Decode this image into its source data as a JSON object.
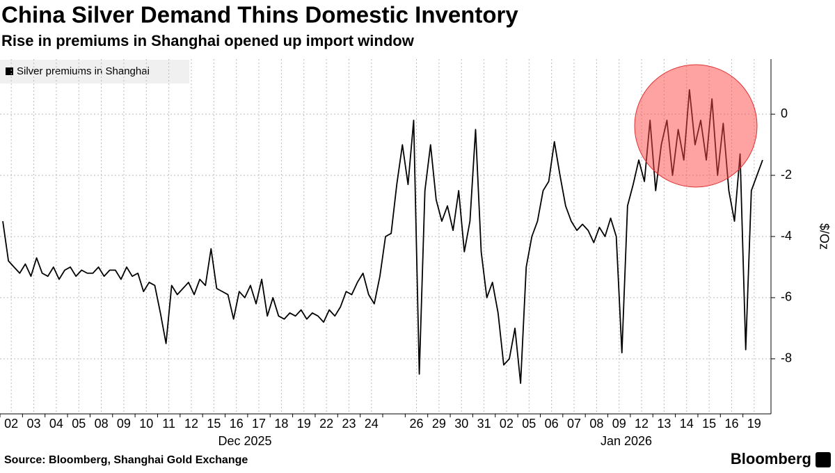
{
  "chart_data": {
    "type": "line",
    "title": "China Silver Demand Thins Domestic Inventory",
    "subtitle": "Rise in premiums in Shanghai opened up import window",
    "y_label": "$/Oz",
    "source": "Source: Bloomberg, Shanghai Gold Exchange",
    "brand": "Bloomberg",
    "month_labels": [
      "Dec 2025",
      "Jan 2026"
    ],
    "categories": [
      null,
      "02",
      null,
      null,
      null,
      "03",
      null,
      null,
      null,
      "04",
      null,
      null,
      null,
      "05",
      null,
      null,
      null,
      "08",
      null,
      null,
      null,
      "09",
      null,
      null,
      null,
      "10",
      null,
      null,
      null,
      "11",
      null,
      null,
      null,
      "12",
      null,
      null,
      null,
      "15",
      null,
      null,
      null,
      "16",
      null,
      null,
      null,
      "17",
      null,
      null,
      null,
      "18",
      null,
      null,
      null,
      "19",
      null,
      null,
      null,
      "22",
      null,
      null,
      null,
      "23",
      null,
      null,
      null,
      "24",
      null,
      null,
      null,
      null,
      null,
      null,
      null,
      "26",
      null,
      null,
      null,
      "29",
      null,
      null,
      null,
      "30",
      null,
      null,
      null,
      "31",
      null,
      null,
      null,
      "02",
      null,
      null,
      null,
      "05",
      null,
      null,
      null,
      "06",
      null,
      null,
      null,
      "07",
      null,
      null,
      null,
      "08",
      null,
      null,
      null,
      "09",
      null,
      null,
      null,
      "12",
      null,
      null,
      null,
      "13",
      null,
      null,
      null,
      "14",
      null,
      null,
      null,
      "15",
      null,
      null,
      null,
      "16",
      null,
      null,
      null,
      "19",
      null,
      null
    ],
    "series": [
      {
        "name": "Silver premiums in Shanghai",
        "color": "#000000",
        "values": [
          -3.5,
          -4.8,
          -5.0,
          -5.2,
          -4.9,
          -5.3,
          -4.7,
          -5.2,
          -5.3,
          -5.0,
          -5.4,
          -5.1,
          -5.0,
          -5.3,
          -5.1,
          -5.2,
          -5.2,
          -5.0,
          -5.3,
          -5.1,
          -5.1,
          -5.4,
          -5.0,
          -5.3,
          -5.2,
          -5.8,
          -5.5,
          -5.6,
          -6.5,
          -7.5,
          -5.6,
          -5.9,
          -5.7,
          -5.5,
          -5.9,
          -5.4,
          -5.6,
          -4.4,
          -5.7,
          -5.8,
          -5.9,
          -6.7,
          -5.8,
          -6.0,
          -5.6,
          -6.2,
          -5.4,
          -6.6,
          -6.0,
          -6.6,
          -6.7,
          -6.5,
          -6.6,
          -6.4,
          -6.7,
          -6.5,
          -6.6,
          -6.8,
          -6.4,
          -6.6,
          -6.3,
          -5.8,
          -5.9,
          -5.5,
          -5.2,
          -5.9,
          -6.2,
          -5.3,
          -4.0,
          -3.9,
          -2.3,
          -1.0,
          -2.3,
          -0.2,
          -8.5,
          -2.5,
          -1.0,
          -2.8,
          -3.5,
          -3.0,
          -3.8,
          -2.5,
          -4.5,
          -3.5,
          -0.5,
          -4.5,
          -6.0,
          -5.5,
          -6.5,
          -8.2,
          -8.0,
          -7.0,
          -8.8,
          -5.0,
          -4.0,
          -3.5,
          -2.5,
          -2.2,
          -0.9,
          -2.0,
          -3.0,
          -3.5,
          -3.8,
          -3.6,
          -3.8,
          -4.2,
          -3.7,
          -4.0,
          -3.4,
          -4.0,
          -7.8,
          -3.0,
          -2.3,
          -1.5,
          -2.2,
          -0.2,
          -2.5,
          -1.0,
          -0.2,
          -2.0,
          -0.5,
          -1.5,
          0.8,
          -1.0,
          -0.2,
          -1.5,
          0.5,
          -2.0,
          -0.3,
          -2.5,
          -3.5,
          -1.3,
          -7.7,
          -2.5,
          -2.0,
          -1.5
        ]
      }
    ],
    "ylim": [
      -9.8,
      1.8
    ],
    "yticks": [
      0,
      -2,
      -4,
      -6,
      -8
    ],
    "grid": true,
    "y_axis_side": "right"
  }
}
